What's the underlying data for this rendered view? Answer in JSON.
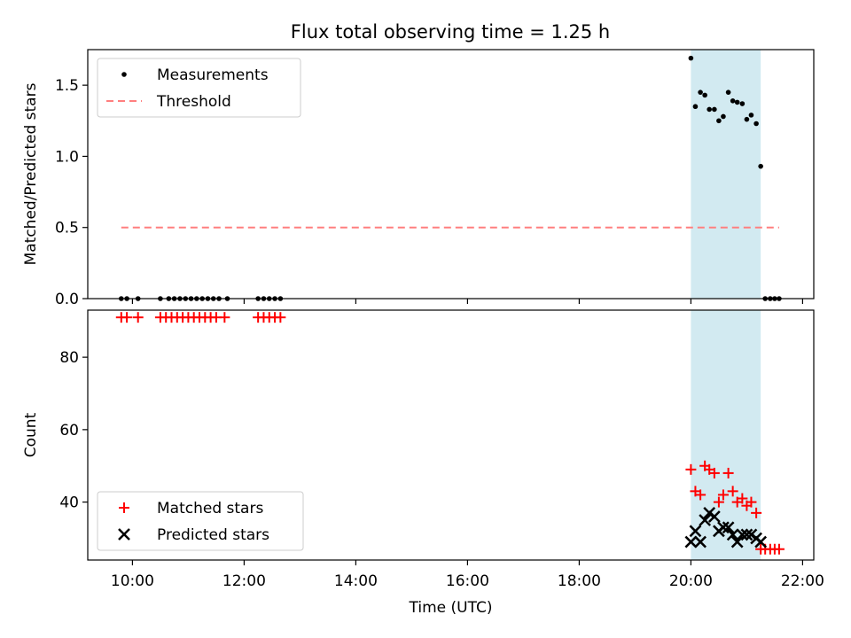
{
  "title": "Flux total observing time = 1.25 h",
  "chart_data": [
    {
      "type": "scatter",
      "ylabel": "Matched/Predicted stars",
      "xlabel": "",
      "ylim": [
        0,
        1.75
      ],
      "yticks": [
        0.0,
        0.5,
        1.0,
        1.5
      ],
      "ytick_labels": [
        "0.0",
        "0.5",
        "1.0",
        "1.5"
      ],
      "xlim": [
        9.2,
        22.2
      ],
      "shaded_region": {
        "x": [
          20.0,
          21.25
        ],
        "color": "#add8e6"
      },
      "legend": {
        "placement": "top-left",
        "entries": [
          "Measurements",
          "Threshold"
        ]
      },
      "series": [
        {
          "name": "Measurements",
          "color": "#000000",
          "marker": "dot",
          "points": [
            [
              9.8,
              0
            ],
            [
              9.9,
              0
            ],
            [
              10.1,
              0
            ],
            [
              10.5,
              0
            ],
            [
              10.65,
              0
            ],
            [
              10.75,
              0
            ],
            [
              10.85,
              0
            ],
            [
              10.95,
              0
            ],
            [
              11.05,
              0
            ],
            [
              11.15,
              0
            ],
            [
              11.25,
              0
            ],
            [
              11.35,
              0
            ],
            [
              11.45,
              0
            ],
            [
              11.55,
              0
            ],
            [
              11.7,
              0
            ],
            [
              12.25,
              0
            ],
            [
              12.35,
              0
            ],
            [
              12.45,
              0
            ],
            [
              12.55,
              0
            ],
            [
              12.65,
              0
            ],
            [
              20.0,
              1.69
            ],
            [
              20.08,
              1.35
            ],
            [
              20.17,
              1.45
            ],
            [
              20.25,
              1.43
            ],
            [
              20.33,
              1.33
            ],
            [
              20.42,
              1.33
            ],
            [
              20.5,
              1.25
            ],
            [
              20.58,
              1.28
            ],
            [
              20.67,
              1.45
            ],
            [
              20.75,
              1.39
            ],
            [
              20.83,
              1.38
            ],
            [
              20.92,
              1.37
            ],
            [
              21.0,
              1.26
            ],
            [
              21.08,
              1.29
            ],
            [
              21.17,
              1.23
            ],
            [
              21.25,
              0.93
            ],
            [
              21.33,
              0
            ],
            [
              21.42,
              0
            ],
            [
              21.5,
              0
            ],
            [
              21.58,
              0
            ]
          ]
        },
        {
          "name": "Threshold",
          "color": "#ff7f7f",
          "style": "dashed",
          "points": [
            [
              9.8,
              0.5
            ],
            [
              21.58,
              0.5
            ]
          ]
        }
      ]
    },
    {
      "type": "scatter",
      "ylabel": "Count",
      "xlabel": "Time (UTC)",
      "ylim": [
        24,
        93
      ],
      "yticks": [
        40,
        60,
        80
      ],
      "ytick_labels": [
        "40",
        "60",
        "80"
      ],
      "xlim": [
        9.2,
        22.2
      ],
      "xticks": [
        10,
        12,
        14,
        16,
        18,
        20,
        22
      ],
      "xtick_labels": [
        "10:00",
        "12:00",
        "14:00",
        "16:00",
        "18:00",
        "20:00",
        "22:00"
      ],
      "shaded_region": {
        "x": [
          20.0,
          21.25
        ],
        "color": "#add8e6"
      },
      "legend": {
        "placement": "bottom-left",
        "entries": [
          "Matched stars",
          "Predicted stars"
        ]
      },
      "series": [
        {
          "name": "Matched stars",
          "color": "#ff0000",
          "marker": "plus",
          "points": [
            [
              9.8,
              91
            ],
            [
              9.9,
              91
            ],
            [
              10.1,
              91
            ],
            [
              10.5,
              91
            ],
            [
              10.6,
              91
            ],
            [
              10.7,
              91
            ],
            [
              10.8,
              91
            ],
            [
              10.9,
              91
            ],
            [
              11.0,
              91
            ],
            [
              11.1,
              91
            ],
            [
              11.2,
              91
            ],
            [
              11.3,
              91
            ],
            [
              11.4,
              91
            ],
            [
              11.5,
              91
            ],
            [
              11.65,
              91
            ],
            [
              12.25,
              91
            ],
            [
              12.35,
              91
            ],
            [
              12.45,
              91
            ],
            [
              12.55,
              91
            ],
            [
              12.65,
              91
            ],
            [
              20.0,
              49
            ],
            [
              20.08,
              43
            ],
            [
              20.17,
              42
            ],
            [
              20.25,
              50
            ],
            [
              20.33,
              49
            ],
            [
              20.42,
              48
            ],
            [
              20.5,
              40
            ],
            [
              20.58,
              42
            ],
            [
              20.67,
              48
            ],
            [
              20.75,
              43
            ],
            [
              20.83,
              40
            ],
            [
              20.92,
              41
            ],
            [
              21.0,
              39
            ],
            [
              21.08,
              40
            ],
            [
              21.17,
              37
            ],
            [
              21.25,
              27
            ],
            [
              21.33,
              27
            ],
            [
              21.42,
              27
            ],
            [
              21.5,
              27
            ],
            [
              21.58,
              27
            ]
          ]
        },
        {
          "name": "Predicted stars",
          "color": "#000000",
          "marker": "x",
          "points": [
            [
              20.0,
              29
            ],
            [
              20.08,
              32
            ],
            [
              20.17,
              29
            ],
            [
              20.25,
              35
            ],
            [
              20.33,
              37
            ],
            [
              20.42,
              36
            ],
            [
              20.5,
              32
            ],
            [
              20.58,
              33
            ],
            [
              20.67,
              33
            ],
            [
              20.75,
              31
            ],
            [
              20.83,
              29
            ],
            [
              20.92,
              31
            ],
            [
              21.0,
              31
            ],
            [
              21.08,
              31
            ],
            [
              21.17,
              30
            ],
            [
              21.25,
              29
            ]
          ]
        }
      ]
    }
  ]
}
